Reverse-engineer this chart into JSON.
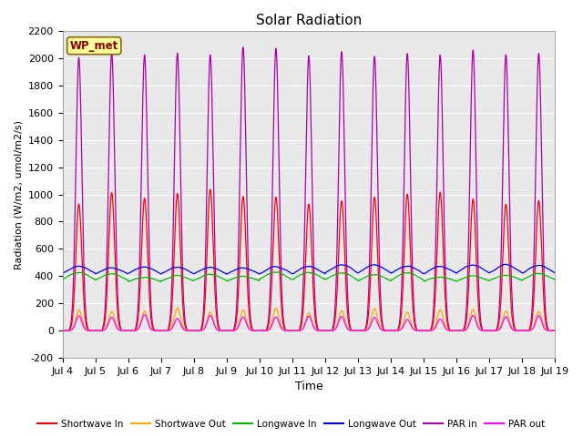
{
  "title": "Solar Radiation",
  "ylabel": "Radiation (W/m2, umol/m2/s)",
  "xlabel": "Time",
  "ylim": [
    -200,
    2200
  ],
  "yticks": [
    -200,
    0,
    200,
    400,
    600,
    800,
    1000,
    1200,
    1400,
    1600,
    1800,
    2000,
    2200
  ],
  "xtick_labels": [
    "Jul 4",
    "Jul 5",
    "Jul 6",
    "Jul 7",
    "Jul 8",
    "Jul 9",
    "Jul 10",
    "Jul 11",
    "Jul 12",
    "Jul 13",
    "Jul 14",
    "Jul 15",
    "Jul 16",
    "Jul 17",
    "Jul 18",
    "Jul 19"
  ],
  "n_days": 15,
  "annotation_text": "WP_met",
  "annotation_box_color": "#FFFF99",
  "annotation_border_color": "#8B6914",
  "bg_color": "#E8E8E8",
  "series": {
    "shortwave_in": {
      "color": "#FF0000",
      "label": "Shortwave In",
      "peak": 1000,
      "night": 0
    },
    "shortwave_out": {
      "color": "#FFA500",
      "label": "Shortwave Out",
      "peak": 150,
      "night": 0
    },
    "longwave_in": {
      "color": "#00BB00",
      "label": "Longwave In",
      "peak": 420,
      "night": 340
    },
    "longwave_out": {
      "color": "#0000FF",
      "label": "Longwave Out",
      "peak": 480,
      "night": 385
    },
    "par_in": {
      "color": "#AA00AA",
      "label": "PAR in",
      "peak": 2080,
      "night": 0
    },
    "par_out": {
      "color": "#FF00FF",
      "label": "PAR out",
      "peak": 95,
      "night": 0
    }
  }
}
